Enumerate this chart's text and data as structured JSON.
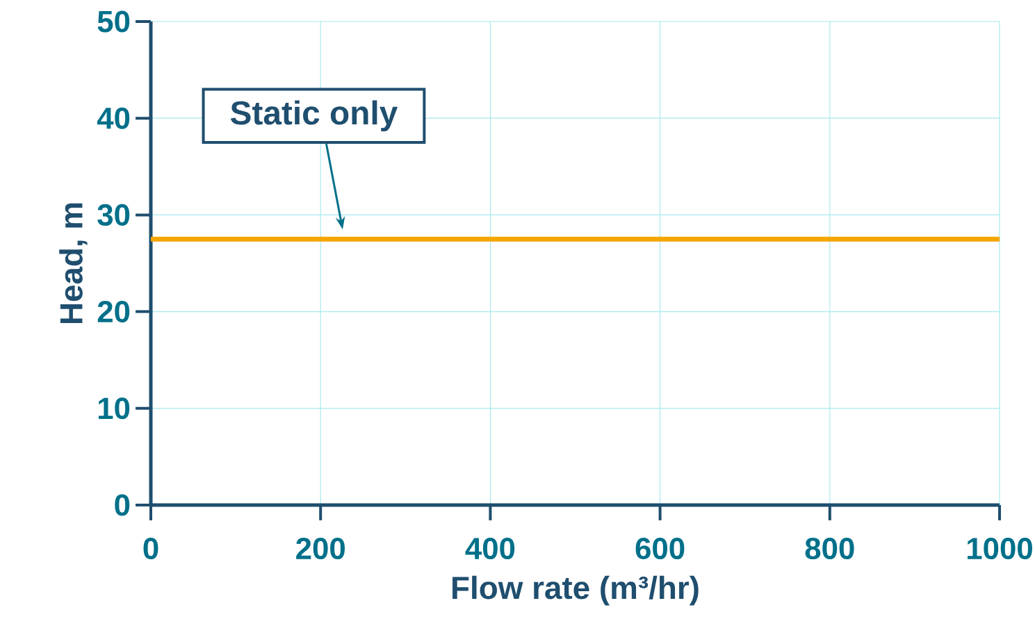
{
  "chart_data": {
    "type": "line",
    "xlabel": "Flow rate (m³/hr)",
    "ylabel": "Head, m",
    "series": [
      {
        "x": [
          0,
          1000
        ],
        "values": [
          27.5,
          27.5
        ],
        "color": "#f5a500"
      }
    ],
    "xlim": [
      0,
      1000
    ],
    "xticks": [
      0,
      200,
      400,
      600,
      800,
      1000
    ],
    "ylim": [
      0,
      50
    ],
    "yticks": [
      0,
      10,
      20,
      30,
      40,
      50
    ],
    "grid": true,
    "marker": "none",
    "line_style": "solid",
    "annotations": [
      "Static only"
    ]
  }
}
